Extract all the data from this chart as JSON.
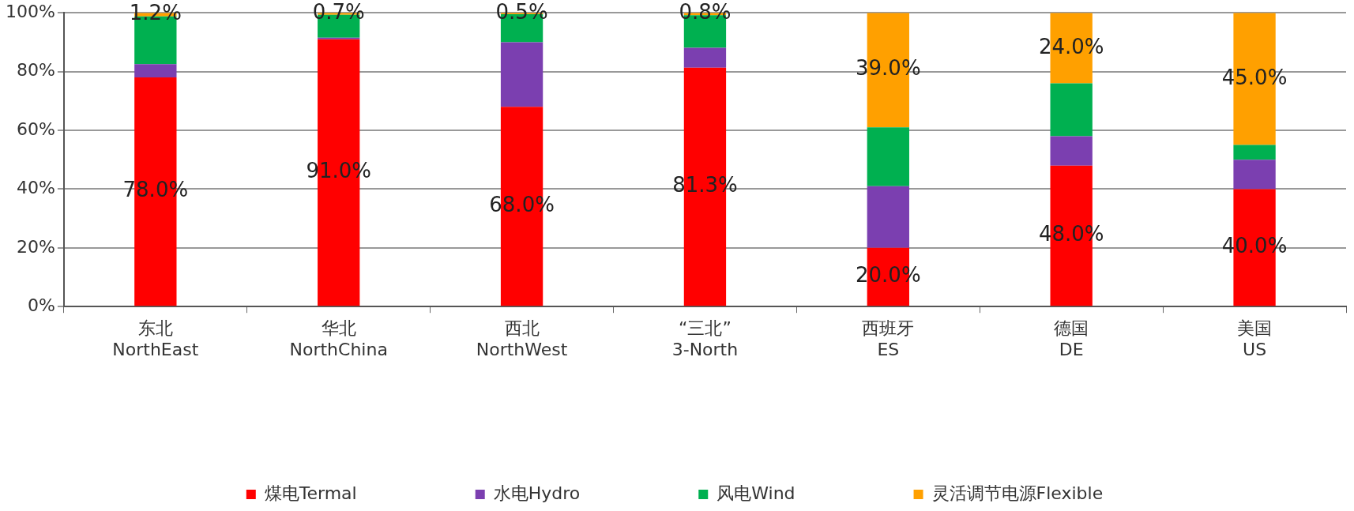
{
  "chart_data": {
    "type": "bar",
    "stacked": true,
    "categories": [
      "东北\nNorthEast",
      "华北\nNorthChina",
      "西北\nNorthWest",
      "“三北”\n3-North",
      "西班牙\nES",
      "德国\nDE",
      "美国\nUS"
    ],
    "series": [
      {
        "name": "煤电Termal",
        "color": "#ff0000",
        "values": [
          78.0,
          91.0,
          68.0,
          81.3,
          20.0,
          48.0,
          40.0
        ],
        "value_labels": [
          "78.0%",
          "91.0%",
          "68.0%",
          "81.3%",
          "20.0%",
          "48.0%",
          "40.0%"
        ]
      },
      {
        "name": "水电Hydro",
        "color": "#7b3fb0",
        "values": [
          4.5,
          0.5,
          22,
          6.8,
          21,
          10,
          10
        ]
      },
      {
        "name": "风电Wind",
        "color": "#00b050",
        "values": [
          16.3,
          7.8,
          9.5,
          11.1,
          20,
          18,
          5
        ]
      },
      {
        "name": "灵活调节电源Flexible",
        "color": "#ffa000",
        "values": [
          1.2,
          0.7,
          0.5,
          0.8,
          39.0,
          24.0,
          45.0
        ],
        "value_labels": [
          "1.2%",
          "0.7%",
          "0.5%",
          "0.8%",
          "39.0%",
          "24.0%",
          "45.0%"
        ]
      }
    ],
    "ylim": [
      0,
      100
    ],
    "yticks": [
      {
        "value": 0,
        "label": "0%"
      },
      {
        "value": 20,
        "label": "20%"
      },
      {
        "value": 40,
        "label": "40%"
      },
      {
        "value": 60,
        "label": "60%"
      },
      {
        "value": 80,
        "label": "80%"
      },
      {
        "value": 100,
        "label": "100%"
      }
    ],
    "grid": "y",
    "legend": "bottom"
  }
}
